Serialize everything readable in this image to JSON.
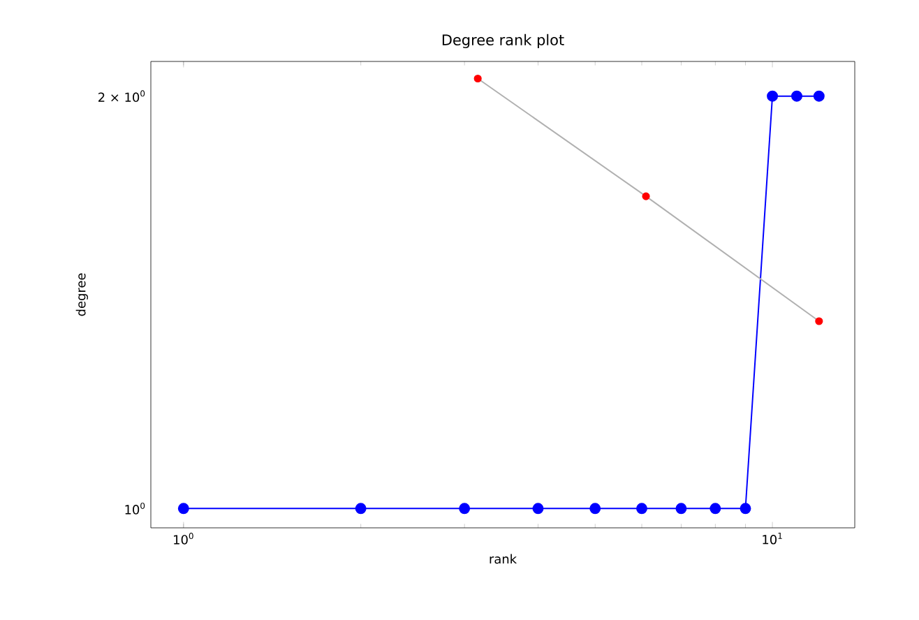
{
  "chart_data": {
    "type": "line",
    "title": "Degree rank plot",
    "xlabel": "rank",
    "ylabel": "degree",
    "log": "xy",
    "marker": "circle",
    "line_style": "solid",
    "xlim": [
      0.88,
      13.8
    ],
    "ylim": [
      0.968,
      2.12
    ],
    "xticks": [
      {
        "value": 1,
        "label": "10$^{0}$"
      },
      {
        "value": 10,
        "label": "10$^{1}$"
      }
    ],
    "yticks": [
      {
        "value": 1,
        "label": "10$^{0}$"
      },
      {
        "value": 2,
        "label": "2 × 10$^{0}$"
      }
    ],
    "series": [
      {
        "color": "#0000ff",
        "x": [
          1,
          2,
          3,
          4,
          5,
          6,
          7,
          8,
          9,
          10,
          11,
          12
        ],
        "values": [
          1,
          1,
          1,
          1,
          1,
          1,
          1,
          1,
          1,
          2,
          2,
          2
        ]
      },
      {
        "color": "#ff0000",
        "x": [
          3.16,
          6.1,
          12
        ],
        "values": [
          2.06,
          1.69,
          1.37
        ]
      }
    ]
  }
}
